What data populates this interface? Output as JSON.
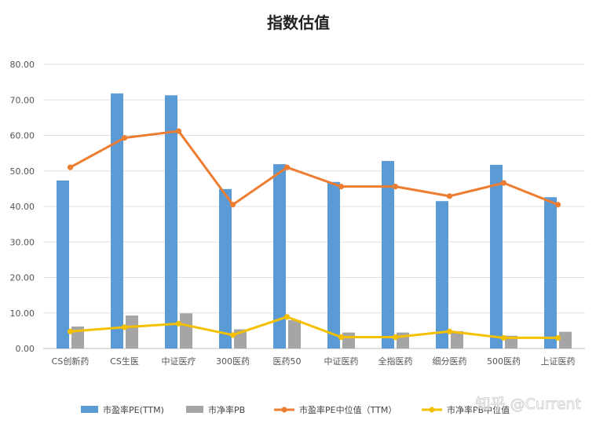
{
  "chart_data": {
    "type": "bar",
    "title": "指数估值",
    "categories": [
      "CS创新药",
      "CS生医",
      "中证医疗",
      "300医药",
      "医药50",
      "中证医药",
      "全指医药",
      "细分医药",
      "500医药",
      "上证医药"
    ],
    "ylim": [
      0,
      80
    ],
    "yticks": [
      "0.00",
      "10.00",
      "20.00",
      "30.00",
      "40.00",
      "50.00",
      "60.00",
      "70.00",
      "80.00"
    ],
    "grid": true,
    "legend_position": "bottom",
    "series": [
      {
        "name": "市盈率PE(TTM)",
        "kind": "bar",
        "color": "#5b9bd5",
        "values": [
          47.3,
          71.8,
          71.3,
          44.9,
          51.9,
          46.9,
          52.8,
          41.5,
          51.7,
          42.6
        ]
      },
      {
        "name": "市净率PB",
        "kind": "bar",
        "color": "#a5a5a5",
        "values": [
          6.2,
          9.3,
          9.9,
          5.4,
          8.0,
          4.5,
          4.5,
          4.9,
          3.6,
          4.7
        ]
      },
      {
        "name": "市盈率PE中位值（TTM）",
        "kind": "line",
        "color": "#ed7d31",
        "values": [
          51.0,
          59.3,
          61.2,
          40.5,
          51.0,
          45.6,
          45.6,
          42.9,
          46.6,
          40.5
        ]
      },
      {
        "name": "市净率PB中位值",
        "kind": "line",
        "color": "#f5c000",
        "values": [
          4.8,
          6.0,
          7.0,
          3.8,
          8.9,
          3.2,
          3.2,
          4.8,
          3.0,
          3.0
        ]
      }
    ]
  },
  "watermark": "知乎 @Current"
}
